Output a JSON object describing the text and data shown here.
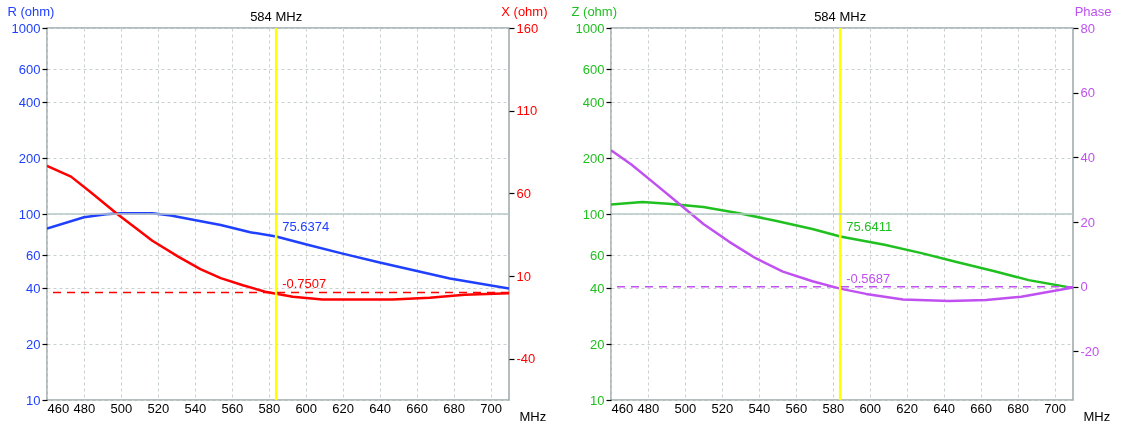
{
  "chart_data": [
    {
      "type": "line",
      "xlabel": "MHz",
      "ylabel": "R (ohm)",
      "y2label": "X (ohm)",
      "xlim": [
        460,
        710
      ],
      "xticks": [
        460,
        480,
        500,
        520,
        540,
        560,
        580,
        600,
        620,
        640,
        660,
        680,
        700
      ],
      "ylim": [
        10,
        1000
      ],
      "yticks": [
        10,
        20,
        40,
        60,
        100,
        200,
        400,
        600,
        1000
      ],
      "y2lim": [
        -65,
        160
      ],
      "y2ticks": [
        -40,
        10,
        60,
        110,
        160
      ],
      "log": "y",
      "grid": true,
      "line_style": "solid",
      "marker": "none",
      "series": [
        {
          "color": "#2040ff",
          "axis": "y",
          "x": [
            460,
            480,
            492,
            500,
            517,
            527,
            539,
            554,
            570,
            584,
            601,
            620,
            640,
            659,
            678,
            710
          ],
          "values": [
            83.4,
            96.1,
            99.6,
            101,
            101,
            98.2,
            93.1,
            87.2,
            79.8,
            75.6374,
            68.4,
            61.2,
            54.8,
            49.7,
            45,
            39.7
          ],
          "value_labels": [
            null,
            null,
            null,
            null,
            null,
            null,
            null,
            null,
            null,
            "75.6374",
            null,
            null,
            null,
            null,
            null,
            null
          ]
        },
        {
          "color": "#ff0000",
          "axis": "y2",
          "x": [
            460,
            473,
            484,
            498,
            508,
            517,
            531,
            543,
            554,
            566,
            578,
            584,
            593,
            609,
            628,
            647,
            667,
            686,
            710
          ],
          "values": [
            76.6,
            70.1,
            60.4,
            47.5,
            39,
            31.3,
            21.7,
            14.2,
            8.7,
            4.4,
            0.5,
            -0.7507,
            -2.5,
            -4.2,
            -4.2,
            -4.2,
            -3.1,
            -1.4,
            -0.5
          ],
          "value_labels": [
            null,
            null,
            null,
            null,
            null,
            null,
            null,
            null,
            null,
            null,
            null,
            "-0.7507",
            null,
            null,
            null,
            null,
            null,
            null,
            null
          ]
        }
      ],
      "ref_lines": [
        {
          "axis": "x",
          "value": 584,
          "label": "584 MHz",
          "color": "#ffff00",
          "line_style": "solid"
        },
        {
          "axis": "y",
          "value": 100,
          "color": "#b8c8c8",
          "line_style": "solid"
        },
        {
          "axis": "y2",
          "value": 0,
          "color": "#ff0000",
          "line_style": "dashed"
        }
      ]
    },
    {
      "type": "line",
      "xlabel": "MHz",
      "ylabel": "Z (ohm)",
      "y2label": "Phase",
      "xlim": [
        460,
        710
      ],
      "xticks": [
        460,
        480,
        500,
        520,
        540,
        560,
        580,
        600,
        620,
        640,
        660,
        680,
        700
      ],
      "ylim": [
        10,
        1000
      ],
      "yticks": [
        10,
        20,
        40,
        60,
        100,
        200,
        400,
        600,
        1000
      ],
      "y2lim": [
        -35,
        80
      ],
      "y2ticks": [
        -20,
        0,
        20,
        40,
        60,
        80
      ],
      "log": "y",
      "grid": true,
      "line_style": "solid",
      "marker": "none",
      "series": [
        {
          "color": "#20c020",
          "axis": "y",
          "x": [
            460,
            477,
            491,
            510,
            530,
            549,
            569,
            584,
            608,
            628,
            647,
            667,
            686,
            710
          ],
          "values": [
            112.5,
            116,
            113.5,
            109.1,
            100.7,
            92,
            83.1,
            75.6411,
            68.3,
            61.6,
            55.2,
            49.4,
            44.1,
            40
          ],
          "value_labels": [
            null,
            null,
            null,
            null,
            null,
            null,
            null,
            "75.6411",
            null,
            null,
            null,
            null,
            null,
            null
          ]
        },
        {
          "color": "#c050f0",
          "axis": "y2",
          "x": [
            460,
            471,
            483,
            497,
            510,
            524,
            538,
            553,
            569,
            584,
            598,
            618,
            643,
            663,
            682,
            710
          ],
          "values": [
            42.2,
            37.8,
            32.2,
            25.6,
            19.4,
            13.9,
            8.9,
            4.7,
            1.7,
            -0.5687,
            -2.2,
            -3.9,
            -4.4,
            -4.1,
            -3.1,
            -0.2
          ],
          "value_labels": [
            null,
            null,
            null,
            null,
            null,
            null,
            null,
            null,
            null,
            "-0.5687",
            null,
            null,
            null,
            null,
            null,
            null
          ]
        }
      ],
      "ref_lines": [
        {
          "axis": "x",
          "value": 584,
          "label": "584 MHz",
          "color": "#ffff00",
          "line_style": "solid"
        },
        {
          "axis": "y",
          "value": 100,
          "color": "#b8c8c8",
          "line_style": "solid"
        },
        {
          "axis": "y2",
          "value": 0,
          "color": "#c050f0",
          "line_style": "dashed"
        }
      ]
    }
  ]
}
